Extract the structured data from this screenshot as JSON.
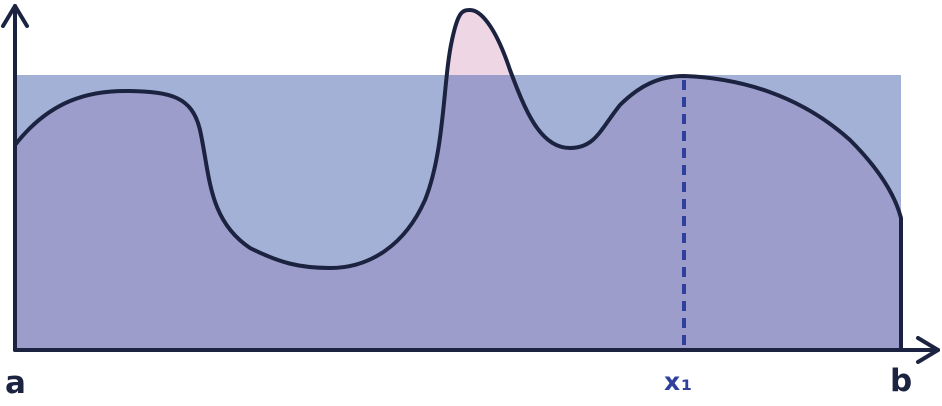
{
  "labels": {
    "a": "a",
    "b": "b",
    "x1": "x₁"
  },
  "colors": {
    "rectangle_fill": "#a4b1d6",
    "area_under_curve_fill": "#9d9dcb",
    "excess_area_fill": "#efd6e5",
    "curve_stroke": "#1c2340",
    "axis_stroke": "#1c2340",
    "x1_marker": "#2f3f9c",
    "background": "#ffffff"
  }
}
